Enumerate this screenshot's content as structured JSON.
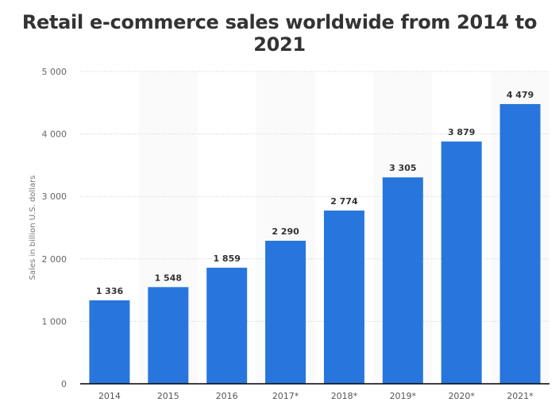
{
  "chart_data": {
    "type": "bar",
    "title": "Retail e-commerce sales worldwide from 2014 to 2021",
    "xlabel": "",
    "ylabel": "Sales in billion U.S. dollars",
    "categories": [
      "2014",
      "2015",
      "2016",
      "2017*",
      "2018*",
      "2019*",
      "2020*",
      "2021*"
    ],
    "values": [
      1336,
      1548,
      1859,
      2290,
      2774,
      3305,
      3879,
      4479
    ],
    "value_labels": [
      "1 336",
      "1 548",
      "1 859",
      "2 290",
      "2 774",
      "3 305",
      "3 879",
      "4 479"
    ],
    "ylim": [
      0,
      5000
    ],
    "yticks": [
      0,
      1000,
      2000,
      3000,
      4000,
      5000
    ],
    "ytick_labels": [
      "0",
      "1 000",
      "2 000",
      "3 000",
      "4 000",
      "5 000"
    ],
    "grid": true,
    "legend": "none",
    "bar_color": "#2876dd"
  }
}
